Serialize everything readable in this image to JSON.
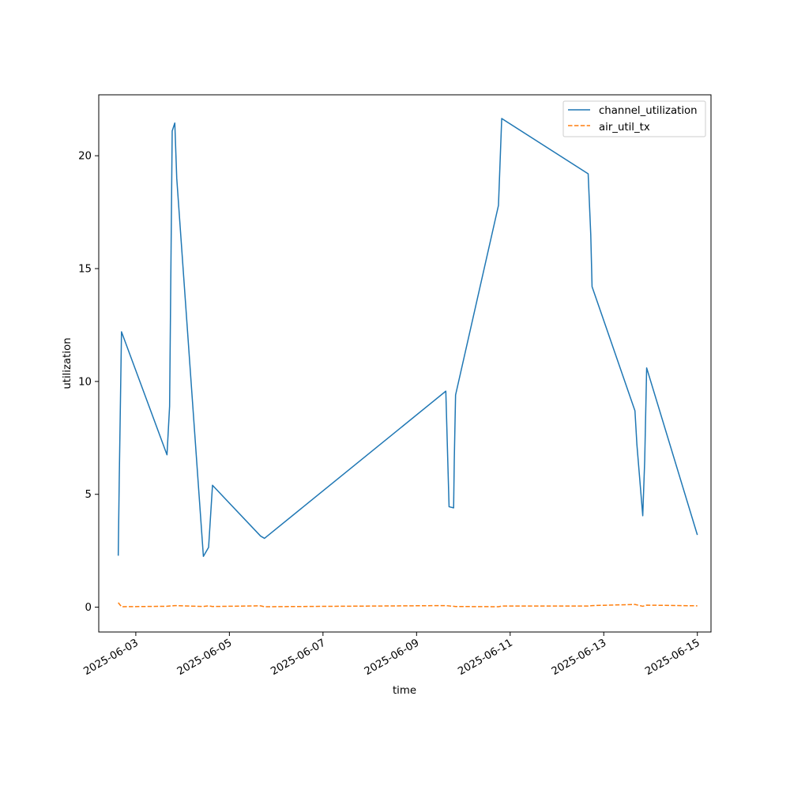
{
  "chart_data": {
    "type": "line",
    "title": "",
    "xlabel": "time",
    "ylabel": "utilization",
    "x_tick_labels": [
      "2025-06-03",
      "2025-06-05",
      "2025-06-07",
      "2025-06-09",
      "2025-06-11",
      "2025-06-13",
      "2025-06-15"
    ],
    "y_tick_labels": [
      "0",
      "5",
      "10",
      "15",
      "20"
    ],
    "y_ticks": [
      0,
      5,
      10,
      15,
      20
    ],
    "xlim": [
      "2025-06-02T05:00",
      "2025-06-15T07:00"
    ],
    "ylim": [
      -1.1,
      22.7
    ],
    "grid": false,
    "legend_position": "top-right",
    "series": [
      {
        "name": "channel_utilization",
        "color": "#1f77b4",
        "style": "solid",
        "points": [
          [
            "2025-06-02T15:00",
            2.28
          ],
          [
            "2025-06-02T15:30",
            5.6
          ],
          [
            "2025-06-02T16:40",
            12.2
          ],
          [
            "2025-06-03T16:00",
            6.75
          ],
          [
            "2025-06-03T17:20",
            8.9
          ],
          [
            "2025-06-03T18:40",
            21.1
          ],
          [
            "2025-06-03T20:00",
            21.45
          ],
          [
            "2025-06-03T21:00",
            19.0
          ],
          [
            "2025-06-04T10:40",
            2.25
          ],
          [
            "2025-06-04T13:20",
            2.65
          ],
          [
            "2025-06-04T15:20",
            5.4
          ],
          [
            "2025-06-05T16:00",
            3.15
          ],
          [
            "2025-06-05T18:00",
            3.05
          ],
          [
            "2025-06-09T15:00",
            9.57
          ],
          [
            "2025-06-09T16:40",
            4.45
          ],
          [
            "2025-06-09T19:00",
            4.4
          ],
          [
            "2025-06-09T19:20",
            6.5
          ],
          [
            "2025-06-09T20:00",
            9.4
          ],
          [
            "2025-06-10T18:00",
            17.8
          ],
          [
            "2025-06-10T19:40",
            21.65
          ],
          [
            "2025-06-12T16:00",
            19.2
          ],
          [
            "2025-06-12T17:20",
            16.5
          ],
          [
            "2025-06-12T18:00",
            14.2
          ],
          [
            "2025-06-13T16:00",
            8.7
          ],
          [
            "2025-06-13T17:00",
            7.2
          ],
          [
            "2025-06-13T20:00",
            4.05
          ],
          [
            "2025-06-13T21:00",
            6.5
          ],
          [
            "2025-06-13T22:00",
            10.6
          ],
          [
            "2025-06-15T00:00",
            3.2
          ]
        ]
      },
      {
        "name": "air_util_tx",
        "color": "#ff7f0e",
        "style": "dashed",
        "points": [
          [
            "2025-06-02T15:00",
            0.2
          ],
          [
            "2025-06-02T16:40",
            0.02
          ],
          [
            "2025-06-03T16:00",
            0.04
          ],
          [
            "2025-06-03T20:00",
            0.07
          ],
          [
            "2025-06-04T10:40",
            0.03
          ],
          [
            "2025-06-04T13:20",
            0.06
          ],
          [
            "2025-06-04T15:20",
            0.03
          ],
          [
            "2025-06-05T16:00",
            0.06
          ],
          [
            "2025-06-05T18:00",
            0.02
          ],
          [
            "2025-06-09T15:00",
            0.07
          ],
          [
            "2025-06-09T20:00",
            0.03
          ],
          [
            "2025-06-10T18:00",
            0.02
          ],
          [
            "2025-06-10T19:40",
            0.05
          ],
          [
            "2025-06-12T16:00",
            0.05
          ],
          [
            "2025-06-12T18:00",
            0.07
          ],
          [
            "2025-06-13T16:00",
            0.12
          ],
          [
            "2025-06-13T20:00",
            0.04
          ],
          [
            "2025-06-13T22:00",
            0.09
          ],
          [
            "2025-06-15T00:00",
            0.06
          ]
        ]
      }
    ]
  }
}
